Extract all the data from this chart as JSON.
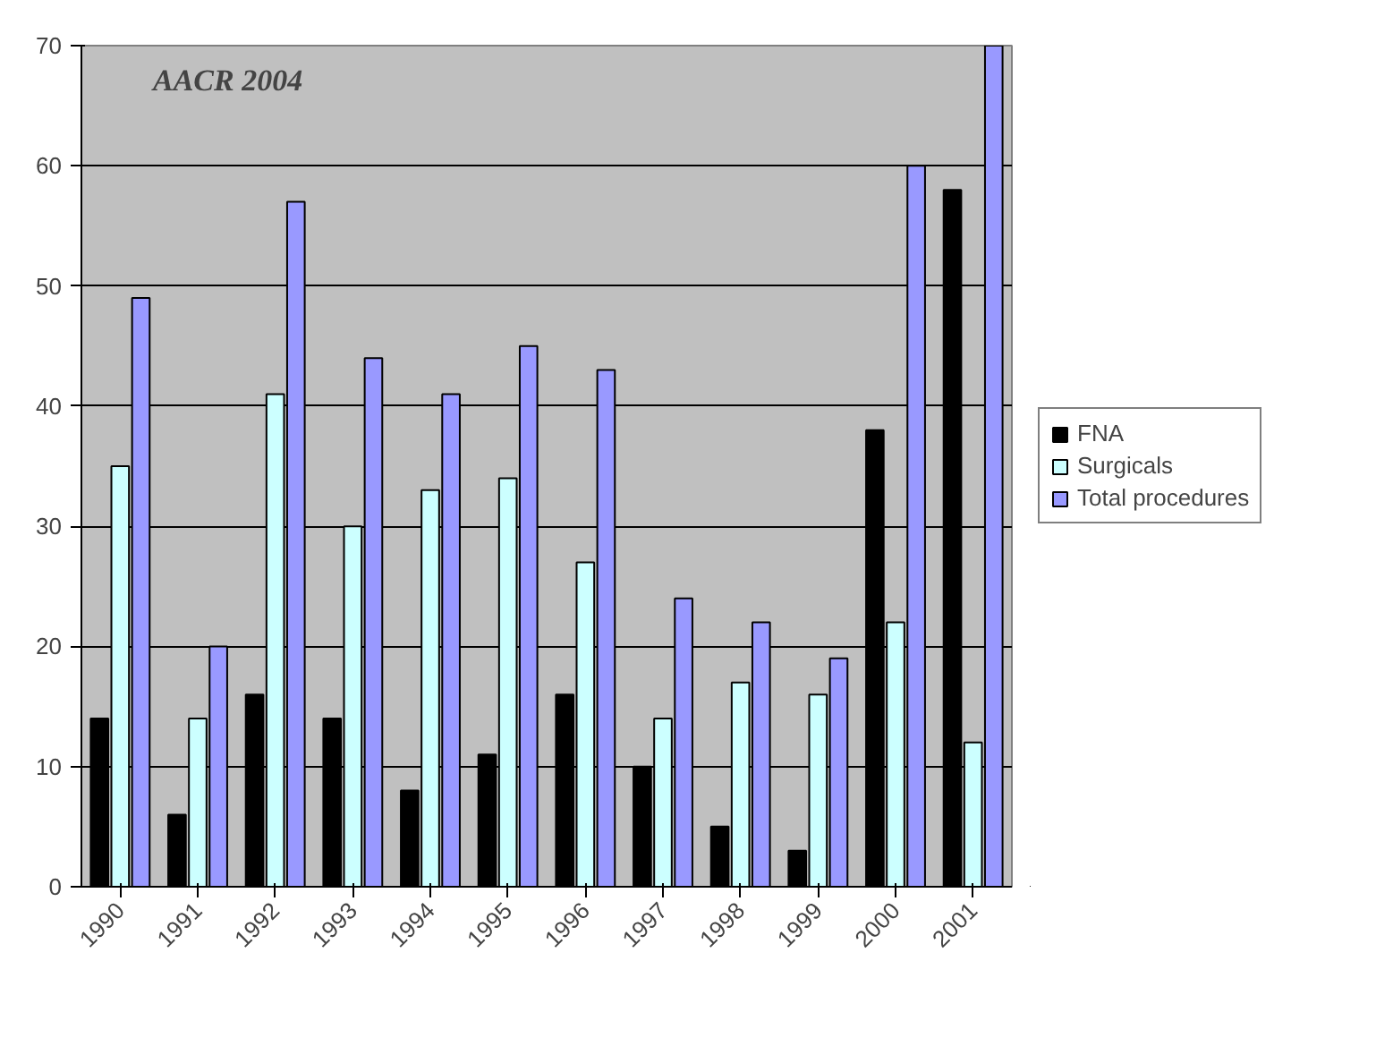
{
  "chart_data": {
    "type": "bar",
    "title": "AACR 2004",
    "categories": [
      "1990",
      "1991",
      "1992",
      "1993",
      "1994",
      "1995",
      "1996",
      "1997",
      "1998",
      "1999",
      "2000",
      "2001"
    ],
    "series": [
      {
        "name": "FNA",
        "color": "#000000",
        "values": [
          14,
          6,
          16,
          14,
          8,
          11,
          16,
          10,
          5,
          3,
          38,
          58
        ]
      },
      {
        "name": "Surgicals",
        "color": "#ccffff",
        "values": [
          35,
          14,
          41,
          30,
          33,
          34,
          27,
          14,
          17,
          16,
          22,
          12
        ]
      },
      {
        "name": "Total procedures",
        "color": "#9999ff",
        "values": [
          49,
          20,
          57,
          44,
          41,
          45,
          43,
          24,
          22,
          19,
          60,
          70
        ]
      }
    ],
    "ylim": [
      0,
      70
    ],
    "yticks": [
      0,
      10,
      20,
      30,
      40,
      50,
      60,
      70
    ],
    "grid": "y",
    "legend": "right"
  }
}
